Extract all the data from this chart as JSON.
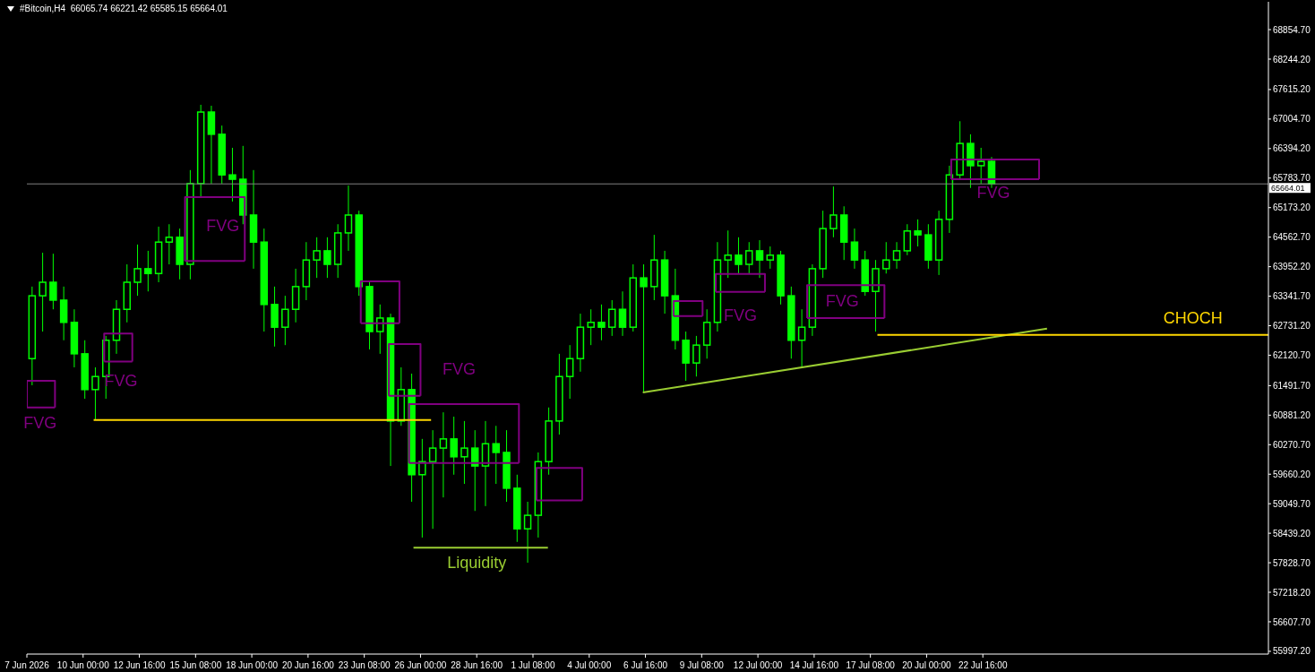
{
  "chart_data": {
    "type": "candlestick",
    "title": "#Bitcoin,H4  66065.74 66221.42 65585.15 65664.01",
    "color": "#00ff00",
    "x": [
      "2026-06-07T14:00",
      "2026-06-08T02:00",
      "2026-06-08T14:00",
      "2026-06-09T02:00",
      "2026-06-09T14:00",
      "2026-06-10T02:00",
      "2026-06-10T14:00",
      "2026-06-11T02:00",
      "2026-06-11T14:00",
      "2026-06-12T02:00",
      "2026-06-12T14:00",
      "2026-06-13T02:00",
      "2026-06-13T14:00",
      "2026-06-14T02:00",
      "2026-06-14T14:00",
      "2026-06-15T02:00",
      "2026-06-15T14:00",
      "2026-06-16T02:00",
      "2026-06-16T14:00",
      "2026-06-17T02:00",
      "2026-06-17T14:00",
      "2026-06-18T02:00",
      "2026-06-18T14:00",
      "2026-06-19T02:00",
      "2026-06-19T14:00",
      "2026-06-20T02:00",
      "2026-06-20T14:00",
      "2026-06-21T02:00",
      "2026-06-21T14:00",
      "2026-06-22T02:00",
      "2026-06-22T14:00",
      "2026-06-23T02:00",
      "2026-06-23T14:00",
      "2026-06-24T02:00",
      "2026-06-24T14:00",
      "2026-06-25T02:00",
      "2026-06-25T14:00",
      "2026-06-26T02:00",
      "2026-06-26T14:00",
      "2026-06-27T02:00",
      "2026-06-27T14:00",
      "2026-06-28T02:00",
      "2026-06-28T14:00",
      "2026-06-29T02:00",
      "2026-06-29T14:00",
      "2026-06-30T02:00",
      "2026-06-30T14:00",
      "2026-07-01T02:00",
      "2026-07-01T14:00",
      "2026-07-02T02:00",
      "2026-07-02T14:00",
      "2026-07-03T02:00",
      "2026-07-03T14:00",
      "2026-07-04T02:00",
      "2026-07-04T14:00",
      "2026-07-05T02:00",
      "2026-07-05T14:00",
      "2026-07-06T02:00",
      "2026-07-06T14:00",
      "2026-07-07T02:00",
      "2026-07-07T14:00",
      "2026-07-08T02:00",
      "2026-07-08T14:00",
      "2026-07-09T02:00",
      "2026-07-09T14:00",
      "2026-07-10T02:00",
      "2026-07-10T14:00",
      "2026-07-11T02:00",
      "2026-07-11T14:00",
      "2026-07-12T02:00",
      "2026-07-12T14:00",
      "2026-07-13T02:00",
      "2026-07-13T14:00",
      "2026-07-14T02:00",
      "2026-07-14T14:00",
      "2026-07-15T02:00",
      "2026-07-15T14:00",
      "2026-07-16T02:00",
      "2026-07-16T14:00",
      "2026-07-17T02:00",
      "2026-07-17T14:00",
      "2026-07-18T02:00",
      "2026-07-18T14:00",
      "2026-07-19T02:00",
      "2026-07-19T14:00",
      "2026-07-20T02:00",
      "2026-07-20T14:00",
      "2026-07-21T02:00",
      "2026-07-21T14:00",
      "2026-07-22T02:00",
      "2026-07-22T14:00",
      "2026-07-23T02:00"
    ],
    "ohlc": [
      [
        62050,
        63540,
        61500,
        63350
      ],
      [
        63350,
        64240,
        62610,
        63630
      ],
      [
        63630,
        64220,
        63070,
        63260
      ],
      [
        63260,
        63540,
        62430,
        62800
      ],
      [
        62800,
        63070,
        61870,
        62150
      ],
      [
        62150,
        62430,
        61220,
        61410
      ],
      [
        61410,
        61870,
        60780,
        61680
      ],
      [
        61680,
        62520,
        61220,
        62430
      ],
      [
        62430,
        63260,
        62150,
        63070
      ],
      [
        63070,
        64000,
        62800,
        63630
      ],
      [
        63630,
        64410,
        63350,
        63910
      ],
      [
        63910,
        64280,
        63440,
        63810
      ],
      [
        63810,
        64780,
        63630,
        64460
      ],
      [
        64460,
        64830,
        64000,
        64560
      ],
      [
        64560,
        64740,
        63690,
        64000
      ],
      [
        64000,
        65950,
        63690,
        65670
      ],
      [
        65670,
        67300,
        65390,
        67150
      ],
      [
        67150,
        67280,
        65670,
        66690
      ],
      [
        66690,
        66870,
        65670,
        65850
      ],
      [
        65850,
        66410,
        65300,
        65760
      ],
      [
        65760,
        66450,
        64830,
        65020
      ],
      [
        65020,
        65950,
        63910,
        64460
      ],
      [
        64460,
        64740,
        62610,
        63170
      ],
      [
        63170,
        63540,
        62300,
        62700
      ],
      [
        62700,
        63350,
        62330,
        63070
      ],
      [
        63070,
        63910,
        62800,
        63540
      ],
      [
        63540,
        64460,
        63260,
        64090
      ],
      [
        64090,
        64560,
        63720,
        64280
      ],
      [
        64280,
        64560,
        63720,
        64000
      ],
      [
        64000,
        64830,
        63720,
        64650
      ],
      [
        64650,
        65630,
        64280,
        65020
      ],
      [
        65020,
        65110,
        63350,
        63540
      ],
      [
        63540,
        63630,
        62240,
        62610
      ],
      [
        62610,
        63170,
        62150,
        62890
      ],
      [
        62890,
        62980,
        59830,
        60760
      ],
      [
        60760,
        61870,
        60660,
        61410
      ],
      [
        61410,
        61740,
        59090,
        59650
      ],
      [
        59650,
        60390,
        58350,
        59920
      ],
      [
        59920,
        60570,
        58530,
        60200
      ],
      [
        60200,
        60940,
        59180,
        60390
      ],
      [
        60390,
        60850,
        59650,
        60020
      ],
      [
        60020,
        60760,
        59460,
        60200
      ],
      [
        60200,
        60570,
        58900,
        59830
      ],
      [
        59830,
        60760,
        59000,
        60290
      ],
      [
        60290,
        60660,
        59460,
        60110
      ],
      [
        60110,
        60570,
        59090,
        59370
      ],
      [
        59370,
        59650,
        58260,
        58530
      ],
      [
        58530,
        59090,
        57830,
        58810
      ],
      [
        58810,
        60110,
        58350,
        59920
      ],
      [
        59920,
        61040,
        59650,
        60760
      ],
      [
        60760,
        62150,
        60480,
        61680
      ],
      [
        61680,
        62330,
        61220,
        62050
      ],
      [
        62050,
        62980,
        61780,
        62700
      ],
      [
        62700,
        63070,
        62330,
        62800
      ],
      [
        62800,
        63170,
        62430,
        62700
      ],
      [
        62700,
        63260,
        62520,
        63070
      ],
      [
        63070,
        63440,
        62520,
        62700
      ],
      [
        62700,
        64000,
        62610,
        63720
      ],
      [
        63720,
        64000,
        61350,
        63540
      ],
      [
        63540,
        64610,
        63260,
        64090
      ],
      [
        64090,
        64280,
        62980,
        63350
      ],
      [
        63350,
        63910,
        62240,
        62430
      ],
      [
        62430,
        62610,
        61590,
        61960
      ],
      [
        61960,
        62520,
        61680,
        62330
      ],
      [
        62330,
        63070,
        62050,
        62800
      ],
      [
        62800,
        64460,
        62610,
        64090
      ],
      [
        64090,
        64700,
        63720,
        64190
      ],
      [
        64190,
        64560,
        63810,
        64000
      ],
      [
        64000,
        64460,
        63810,
        64280
      ],
      [
        64280,
        64500,
        63720,
        64090
      ],
      [
        64090,
        64370,
        63910,
        64190
      ],
      [
        64190,
        64280,
        63170,
        63350
      ],
      [
        63350,
        63540,
        62050,
        62430
      ],
      [
        62430,
        63070,
        61870,
        62700
      ],
      [
        62700,
        64000,
        62520,
        63910
      ],
      [
        63910,
        65110,
        63720,
        64740
      ],
      [
        64740,
        65610,
        64560,
        65020
      ],
      [
        65020,
        65200,
        64090,
        64460
      ],
      [
        64460,
        64740,
        63910,
        64090
      ],
      [
        64090,
        64280,
        63350,
        63440
      ],
      [
        63440,
        64090,
        62610,
        63910
      ],
      [
        63910,
        64460,
        63810,
        64090
      ],
      [
        64090,
        64460,
        63910,
        64280
      ],
      [
        64280,
        64830,
        64190,
        64690
      ],
      [
        64690,
        64930,
        64370,
        64610
      ],
      [
        64610,
        64830,
        63910,
        64090
      ],
      [
        64090,
        65110,
        63780,
        64930
      ],
      [
        64930,
        66040,
        64650,
        65850
      ],
      [
        65850,
        66960,
        65760,
        66500
      ],
      [
        66500,
        66690,
        65580,
        66040
      ],
      [
        66040,
        66410,
        65670,
        66130
      ],
      [
        66130,
        66220,
        65580,
        65664.01
      ]
    ],
    "series": [
      {
        "type": "line",
        "color": "#800080",
        "x": [
          "2026-06-07T08:00",
          "2026-06-07T08:00",
          "2026-06-08T16:00",
          "2026-06-08T16:00"
        ],
        "values": [
          61040,
          61590,
          61590,
          61040
        ]
      },
      {
        "type": "line",
        "color": "#800080",
        "x": [
          "2026-06-07T08:00",
          "2026-06-08T16:00"
        ],
        "values": [
          61040,
          61040
        ]
      },
      {
        "type": "line",
        "color": "#800080",
        "x": [
          "2026-06-11T00:00",
          "2026-06-11T00:00",
          "2026-06-12T08:00",
          "2026-06-12T08:00"
        ],
        "values": [
          61990,
          62570,
          62570,
          61990
        ]
      },
      {
        "type": "line",
        "color": "#800080",
        "x": [
          "2026-06-11T00:00",
          "2026-06-12T08:00"
        ],
        "values": [
          61990,
          61990
        ]
      },
      {
        "type": "line",
        "color": "#800080",
        "x": [
          "2026-06-14T20:00",
          "2026-06-14T20:00",
          "2026-06-17T16:00",
          "2026-06-17T16:00"
        ],
        "values": [
          64070,
          65390,
          65390,
          64070
        ]
      },
      {
        "type": "line",
        "color": "#800080",
        "x": [
          "2026-06-14T20:00",
          "2026-06-17T16:00"
        ],
        "values": [
          64070,
          64070
        ]
      },
      {
        "type": "line",
        "color": "#800080",
        "x": [
          "2026-06-23T04:00",
          "2026-06-23T04:00",
          "2026-06-25T00:00",
          "2026-06-25T00:00"
        ],
        "values": [
          62780,
          63650,
          63650,
          62780
        ]
      },
      {
        "type": "line",
        "color": "#800080",
        "x": [
          "2026-06-23T04:00",
          "2026-06-25T00:00"
        ],
        "values": [
          62780,
          62780
        ]
      },
      {
        "type": "line",
        "color": "#800080",
        "x": [
          "2026-06-24T12:00",
          "2026-06-24T12:00",
          "2026-06-26T00:00",
          "2026-06-26T00:00"
        ],
        "values": [
          61280,
          62350,
          62350,
          61280
        ]
      },
      {
        "type": "line",
        "color": "#800080",
        "x": [
          "2026-06-24T12:00",
          "2026-06-26T00:00"
        ],
        "values": [
          61280,
          61280
        ]
      },
      {
        "type": "line",
        "color": "#800080",
        "x": [
          "2026-06-25T11:00",
          "2026-06-25T11:00",
          "2026-06-30T16:00",
          "2026-06-30T16:00"
        ],
        "values": [
          59890,
          61110,
          61110,
          59890
        ]
      },
      {
        "type": "line",
        "color": "#800080",
        "x": [
          "2026-06-25T11:00",
          "2026-06-30T16:00"
        ],
        "values": [
          59890,
          59890
        ]
      },
      {
        "type": "line",
        "color": "#800080",
        "x": [
          "2026-07-01T12:00",
          "2026-07-01T12:00",
          "2026-07-03T16:00",
          "2026-07-03T16:00"
        ],
        "values": [
          59120,
          59790,
          59790,
          59120
        ]
      },
      {
        "type": "line",
        "color": "#800080",
        "x": [
          "2026-07-01T12:00",
          "2026-07-03T16:00"
        ],
        "values": [
          59120,
          59120
        ]
      },
      {
        "type": "line",
        "color": "#800080",
        "x": [
          "2026-07-08T00:00",
          "2026-07-08T00:00",
          "2026-07-09T09:00",
          "2026-07-09T09:00"
        ],
        "values": [
          62930,
          63240,
          63240,
          62930
        ]
      },
      {
        "type": "line",
        "color": "#800080",
        "x": [
          "2026-07-08T00:00",
          "2026-07-09T09:00"
        ],
        "values": [
          62930,
          62930
        ]
      },
      {
        "type": "line",
        "color": "#800080",
        "x": [
          "2026-07-10T00:00",
          "2026-07-10T00:00",
          "2026-07-12T08:00",
          "2026-07-12T08:00"
        ],
        "values": [
          63430,
          63800,
          63800,
          63430
        ]
      },
      {
        "type": "line",
        "color": "#800080",
        "x": [
          "2026-07-10T00:00",
          "2026-07-12T08:00"
        ],
        "values": [
          63430,
          63430
        ]
      },
      {
        "type": "line",
        "color": "#800080",
        "x": [
          "2026-07-14T08:00",
          "2026-07-14T08:00",
          "2026-07-18T00:00",
          "2026-07-18T00:00"
        ],
        "values": [
          62890,
          63570,
          63570,
          62890
        ]
      },
      {
        "type": "line",
        "color": "#800080",
        "x": [
          "2026-07-14T08:00",
          "2026-07-18T00:00"
        ],
        "values": [
          62890,
          62890
        ]
      },
      {
        "type": "line",
        "color": "#800080",
        "x": [
          "2026-07-21T04:00",
          "2026-07-21T04:00",
          "2026-07-25T08:00",
          "2026-07-25T08:00"
        ],
        "values": [
          65760,
          66170,
          66170,
          65760
        ]
      },
      {
        "type": "line",
        "color": "#800080",
        "x": [
          "2026-07-21T04:00",
          "2026-07-25T08:00"
        ],
        "values": [
          65760,
          65760
        ]
      },
      {
        "type": "line",
        "color": "#ffd700",
        "x": [
          "2026-06-10T12:00",
          "2026-06-26T12:00"
        ],
        "values": [
          60780,
          60780
        ]
      },
      {
        "type": "line",
        "color": "#9acd32",
        "x": [
          "2026-06-25T16:00",
          "2026-07-02T01:00"
        ],
        "values": [
          58140,
          58140
        ]
      },
      {
        "type": "line",
        "color": "#9acd32",
        "x": [
          "2026-07-06T13:00",
          "2026-07-25T17:00"
        ],
        "values": [
          61350,
          62670
        ]
      },
      {
        "type": "line",
        "color": "#ffd700",
        "x": [
          "2026-07-17T16:00",
          "2026-08-05T05:00"
        ],
        "values": [
          62540,
          62540
        ]
      }
    ],
    "annotations": [
      {
        "text": "FVG",
        "x": "2026-06-07T23:00",
        "y": 61040
      },
      {
        "text": "FVG",
        "x": "2026-06-11T19:00",
        "y": 61990
      },
      {
        "text": "FVG",
        "x": "2026-06-16T15:00",
        "y": 65390
      },
      {
        "text": "FVG",
        "x": "2026-06-27T20:00",
        "y": 61110
      },
      {
        "text": "FVG",
        "x": "2026-07-11T04:00",
        "y": 63430
      },
      {
        "text": "FVG",
        "x": "2026-07-16T00:00",
        "y": 63570
      },
      {
        "text": "FVG",
        "x": "2026-07-23T04:00",
        "y": 65760
      },
      {
        "text": "Liquidity",
        "x": "2026-06-28T16:00",
        "y": 58140
      },
      {
        "text": "CHOCH",
        "x": "2026-08-01T15:00",
        "y": 62540
      }
    ],
    "ref_lines": [
      {
        "axis": "y",
        "value": 65664.01,
        "label": "65664.01",
        "color": "#808080"
      }
    ],
    "xlim": [
      "2026-06-07T08:00",
      "2026-08-05T05:00"
    ],
    "xticks": [
      {
        "value": "2026-06-07T08:00",
        "label": "7 Jun 2026"
      },
      {
        "value": "2026-06-10T00:00",
        "label": "10 Jun 00:00"
      },
      {
        "value": "2026-06-12T16:00",
        "label": "12 Jun 16:00"
      },
      {
        "value": "2026-06-15T08:00",
        "label": "15 Jun 08:00"
      },
      {
        "value": "2026-06-18T00:00",
        "label": "18 Jun 00:00"
      },
      {
        "value": "2026-06-20T16:00",
        "label": "20 Jun 16:00"
      },
      {
        "value": "2026-06-23T08:00",
        "label": "23 Jun 08:00"
      },
      {
        "value": "2026-06-26T00:00",
        "label": "26 Jun 00:00"
      },
      {
        "value": "2026-06-28T16:00",
        "label": "28 Jun 16:00"
      },
      {
        "value": "2026-07-01T08:00",
        "label": "1 Jul 08:00"
      },
      {
        "value": "2026-07-04T00:00",
        "label": "4 Jul 00:00"
      },
      {
        "value": "2026-07-06T16:00",
        "label": "6 Jul 16:00"
      },
      {
        "value": "2026-07-09T08:00",
        "label": "9 Jul 08:00"
      },
      {
        "value": "2026-07-12T00:00",
        "label": "12 Jul 00:00"
      },
      {
        "value": "2026-07-14T16:00",
        "label": "14 Jul 16:00"
      },
      {
        "value": "2026-07-17T08:00",
        "label": "17 Jul 08:00"
      },
      {
        "value": "2026-07-20T00:00",
        "label": "20 Jul 00:00"
      },
      {
        "value": "2026-07-22T16:00",
        "label": "22 Jul 16:00"
      }
    ],
    "ylim": [
      55940,
      69430
    ],
    "yticks": [
      {
        "value": 68854.7,
        "label": "68854.70"
      },
      {
        "value": 68244.2,
        "label": "68244.20"
      },
      {
        "value": 67615.2,
        "label": "67615.20"
      },
      {
        "value": 67004.7,
        "label": "67004.70"
      },
      {
        "value": 66394.2,
        "label": "66394.20"
      },
      {
        "value": 65783.7,
        "label": "65783.70"
      },
      {
        "value": 65173.2,
        "label": "65173.20"
      },
      {
        "value": 64562.7,
        "label": "64562.70"
      },
      {
        "value": 63952.2,
        "label": "63952.20"
      },
      {
        "value": 63341.7,
        "label": "63341.70"
      },
      {
        "value": 62731.2,
        "label": "62731.20"
      },
      {
        "value": 62120.7,
        "label": "62120.70"
      },
      {
        "value": 61491.7,
        "label": "61491.70"
      },
      {
        "value": 60881.2,
        "label": "60881.20"
      },
      {
        "value": 60270.7,
        "label": "60270.70"
      },
      {
        "value": 59660.2,
        "label": "59660.20"
      },
      {
        "value": 59049.7,
        "label": "59049.70"
      },
      {
        "value": 58439.2,
        "label": "58439.20"
      },
      {
        "value": 57828.7,
        "label": "57828.70"
      },
      {
        "value": 57218.2,
        "label": "57218.20"
      },
      {
        "value": 56607.7,
        "label": "56607.70"
      },
      {
        "value": 55997.2,
        "label": "55997.20"
      }
    ],
    "log": false
  }
}
